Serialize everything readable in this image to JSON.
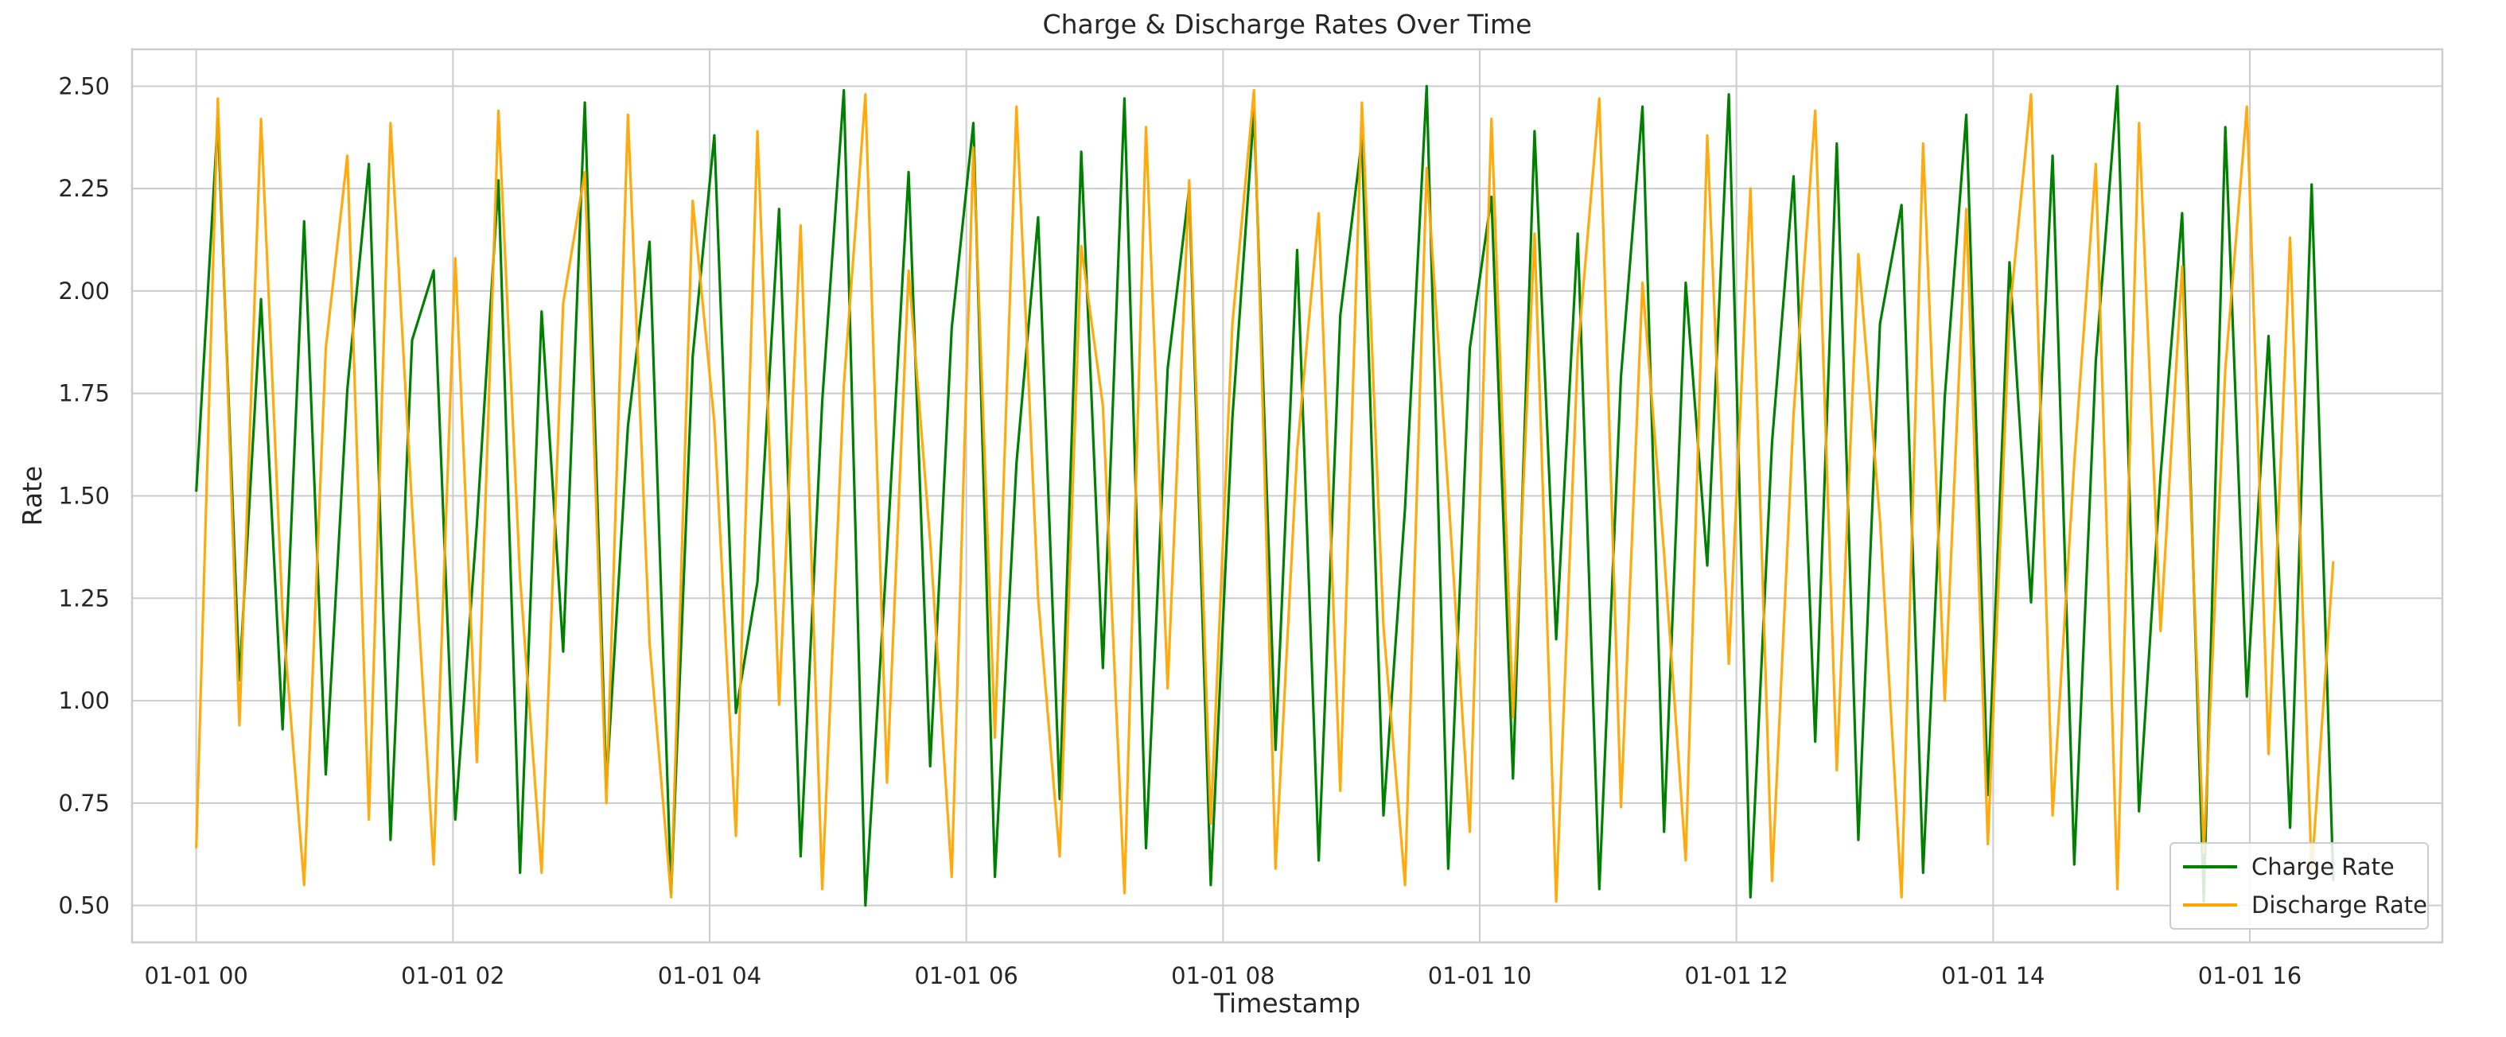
{
  "chart_data": {
    "type": "line",
    "title": "Charge & Discharge Rates Over Time",
    "xlabel": "Timestamp",
    "ylabel": "Rate",
    "x_axis": {
      "kind": "datetime",
      "min": "2023-12-31 23:30",
      "max": "2024-01-01 17:30",
      "ticks": [
        {
          "value": "2024-01-01 00:00",
          "label": "01-01 00"
        },
        {
          "value": "2024-01-01 02:00",
          "label": "01-01 02"
        },
        {
          "value": "2024-01-01 04:00",
          "label": "01-01 04"
        },
        {
          "value": "2024-01-01 06:00",
          "label": "01-01 06"
        },
        {
          "value": "2024-01-01 08:00",
          "label": "01-01 08"
        },
        {
          "value": "2024-01-01 10:00",
          "label": "01-01 10"
        },
        {
          "value": "2024-01-01 12:00",
          "label": "01-01 12"
        },
        {
          "value": "2024-01-01 14:00",
          "label": "01-01 14"
        },
        {
          "value": "2024-01-01 16:00",
          "label": "01-01 16"
        }
      ]
    },
    "y_axis": {
      "min": 0.41,
      "max": 2.59,
      "ticks": [
        {
          "value": 0.5,
          "label": "0.50"
        },
        {
          "value": 0.75,
          "label": "0.75"
        },
        {
          "value": 1.0,
          "label": "1.00"
        },
        {
          "value": 1.25,
          "label": "1.25"
        },
        {
          "value": 1.5,
          "label": "1.50"
        },
        {
          "value": 1.75,
          "label": "1.75"
        },
        {
          "value": 2.0,
          "label": "2.00"
        },
        {
          "value": 2.25,
          "label": "2.25"
        },
        {
          "value": 2.5,
          "label": "2.50"
        }
      ]
    },
    "grid": true,
    "legend_position": "bottom-right",
    "sampling": {
      "start": "2024-01-01 00:00",
      "end": "2024-01-01 16:39",
      "interval_minutes": 1,
      "points_per_series": 1000
    },
    "series": [
      {
        "name": "Charge Rate",
        "color": "#008000",
        "observed": {
          "min": 0.5,
          "max": 2.5
        },
        "values": [
          1.51,
          2.42,
          1.05,
          1.98,
          0.93,
          2.17,
          0.82,
          1.76,
          2.31,
          0.66,
          1.88,
          2.05,
          0.71,
          1.43,
          2.27,
          0.58,
          1.95,
          1.12,
          2.46,
          0.79,
          1.67,
          2.12,
          0.53,
          1.84,
          2.38,
          0.97,
          1.29,
          2.2,
          0.62,
          1.73,
          2.49,
          0.5,
          1.36,
          2.29,
          0.84,
          1.91,
          2.41,
          0.57,
          1.58,
          2.18,
          0.76,
          2.34,
          1.08,
          2.47,
          0.64,
          1.81,
          2.25,
          0.55,
          1.69,
          2.44,
          0.88,
          2.1,
          0.61,
          1.94,
          2.37,
          0.72,
          1.47,
          2.5,
          0.59,
          1.86,
          2.23,
          0.81,
          2.39,
          1.15,
          2.14,
          0.54,
          1.79,
          2.45,
          0.68,
          2.02,
          1.33,
          2.48,
          0.52,
          1.63,
          2.28,
          0.9,
          2.36,
          0.66,
          1.92,
          2.21,
          0.58,
          1.74,
          2.43,
          0.77,
          2.07,
          1.24,
          2.33,
          0.6,
          1.83,
          2.5,
          0.73,
          1.55,
          2.19,
          0.51,
          2.4,
          1.01,
          1.89,
          0.69,
          2.26,
          0.56
        ]
      },
      {
        "name": "Discharge Rate",
        "color": "#FFA500",
        "observed": {
          "min": 0.5,
          "max": 2.5
        },
        "values": [
          0.64,
          2.47,
          0.94,
          2.42,
          1.21,
          0.55,
          1.86,
          2.33,
          0.71,
          2.41,
          1.47,
          0.6,
          2.08,
          0.85,
          2.44,
          1.3,
          0.58,
          1.97,
          2.29,
          0.75,
          2.43,
          1.14,
          0.52,
          2.22,
          1.68,
          0.67,
          2.39,
          0.99,
          2.16,
          0.54,
          1.77,
          2.48,
          0.8,
          2.05,
          1.39,
          0.57,
          2.35,
          0.91,
          2.45,
          1.25,
          0.62,
          2.11,
          1.72,
          0.53,
          2.4,
          1.03,
          2.27,
          0.7,
          1.92,
          2.49,
          0.59,
          1.61,
          2.19,
          0.78,
          2.46,
          1.18,
          0.55,
          2.3,
          1.51,
          0.68,
          2.42,
          0.96,
          2.14,
          0.51,
          1.85,
          2.47,
          0.74,
          2.02,
          1.36,
          0.61,
          2.38,
          1.09,
          2.25,
          0.56,
          1.7,
          2.44,
          0.83,
          2.09,
          1.44,
          0.52,
          2.36,
          1.0,
          2.2,
          0.65,
          1.94,
          2.48,
          0.72,
          1.58,
          2.31,
          0.54,
          2.41,
          1.17,
          2.06,
          0.63,
          1.81,
          2.45,
          0.87,
          2.13,
          0.58,
          1.34
        ]
      }
    ]
  }
}
